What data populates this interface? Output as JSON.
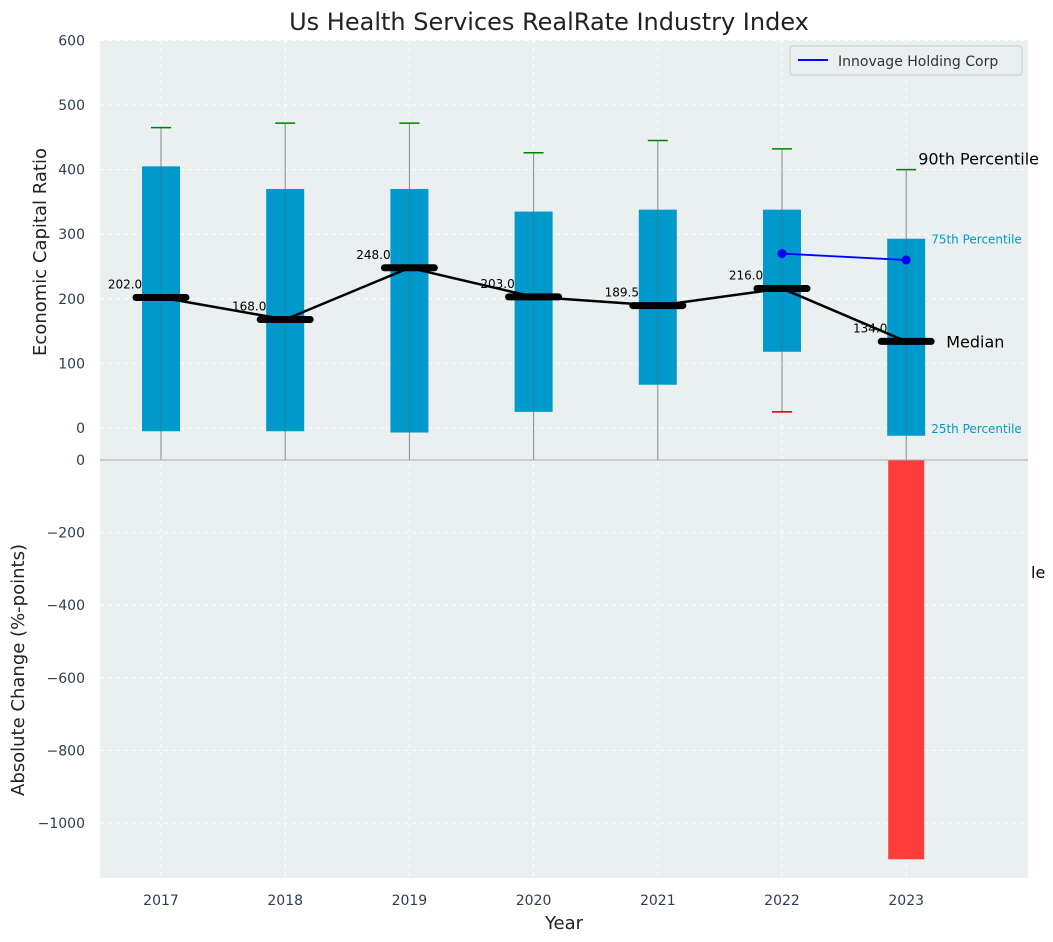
{
  "chart_data": {
    "type": "bar",
    "title": "Us Health Services RealRate Industry Index",
    "xlabel": "Year",
    "categories": [
      "2017",
      "2018",
      "2019",
      "2020",
      "2021",
      "2022",
      "2023"
    ],
    "top_panel": {
      "ylabel": "Economic Capital Ratio",
      "ylim": [
        -50,
        600
      ],
      "yticks": [
        0,
        100,
        200,
        300,
        400,
        500,
        600
      ],
      "box": {
        "p10": [
          -5,
          -5,
          -5,
          -5,
          -5,
          25,
          -5
        ],
        "p25": [
          -5,
          -5,
          -7,
          25,
          67,
          118,
          -12
        ],
        "median": [
          202,
          168,
          248,
          203,
          189.5,
          216,
          134
        ],
        "p75": [
          405,
          370,
          370,
          335,
          338,
          338,
          293
        ],
        "p90": [
          465,
          472,
          472,
          426,
          445,
          432,
          400
        ]
      },
      "median_labels": [
        "202.0",
        "168.0",
        "248.0",
        "203.0",
        "189.5",
        "216.0",
        "134.0"
      ],
      "company_series": {
        "name": "Innovage Holding Corp",
        "x": [
          "2022",
          "2023"
        ],
        "values": [
          270,
          260
        ],
        "color": "#0000ff"
      },
      "annotations": {
        "p90": "90th Percentile",
        "p75": "75th Percentile",
        "median": "Median",
        "p25": "25th Percentile"
      },
      "box_color": "#0099cc",
      "upper_whisker_color": "#008000",
      "lower_whisker_color": "#cc0000",
      "median_color": "#000000"
    },
    "bottom_panel": {
      "ylabel": "Absolute Change (%-points)",
      "ylim": [
        -1150,
        0
      ],
      "yticks": [
        0,
        -200,
        -400,
        -600,
        -800,
        -1000
      ],
      "ytick_labels": [
        "0",
        "−200",
        "−400",
        "−600",
        "−800",
        "−1000"
      ],
      "values": [
        0,
        0,
        0,
        0,
        0,
        0,
        -1100
      ],
      "bar_color": "#ff3b3b",
      "clipped_label": "le"
    },
    "legend": {
      "placement": "top-right",
      "entries": [
        "Innovage Holding Corp"
      ]
    },
    "grid": true,
    "background": "#eaeff0"
  }
}
